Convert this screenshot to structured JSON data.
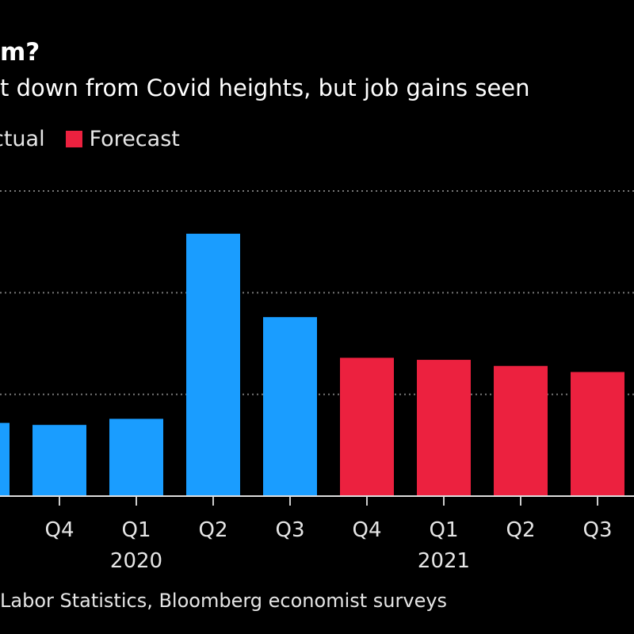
{
  "title": "m?",
  "subtitle": "t down from Covid heights, but job gains seen",
  "legend": [
    {
      "label": "Actual",
      "color": "#1a9dff"
    },
    {
      "label": "Forecast",
      "color": "#ec213f"
    }
  ],
  "footer": "Labor Statistics, Bloomberg economist surveys",
  "chart_data": {
    "type": "bar",
    "categories": [
      "",
      "Q4",
      "Q1",
      "Q2",
      "Q3",
      "Q4",
      "Q1",
      "Q2",
      "Q3"
    ],
    "years": [
      {
        "label": "2020",
        "at": 2
      },
      {
        "label": "2021",
        "at": 6
      }
    ],
    "values": [
      3.6,
      3.5,
      3.8,
      12.9,
      8.8,
      6.8,
      6.7,
      6.4,
      6.1
    ],
    "series_of": [
      "Actual",
      "Actual",
      "Actual",
      "Actual",
      "Actual",
      "Forecast",
      "Forecast",
      "Forecast",
      "Forecast"
    ],
    "ylim": [
      0,
      15
    ],
    "gridlines": [
      5,
      10,
      15
    ],
    "grid": true,
    "legend_placement": "top-left"
  }
}
